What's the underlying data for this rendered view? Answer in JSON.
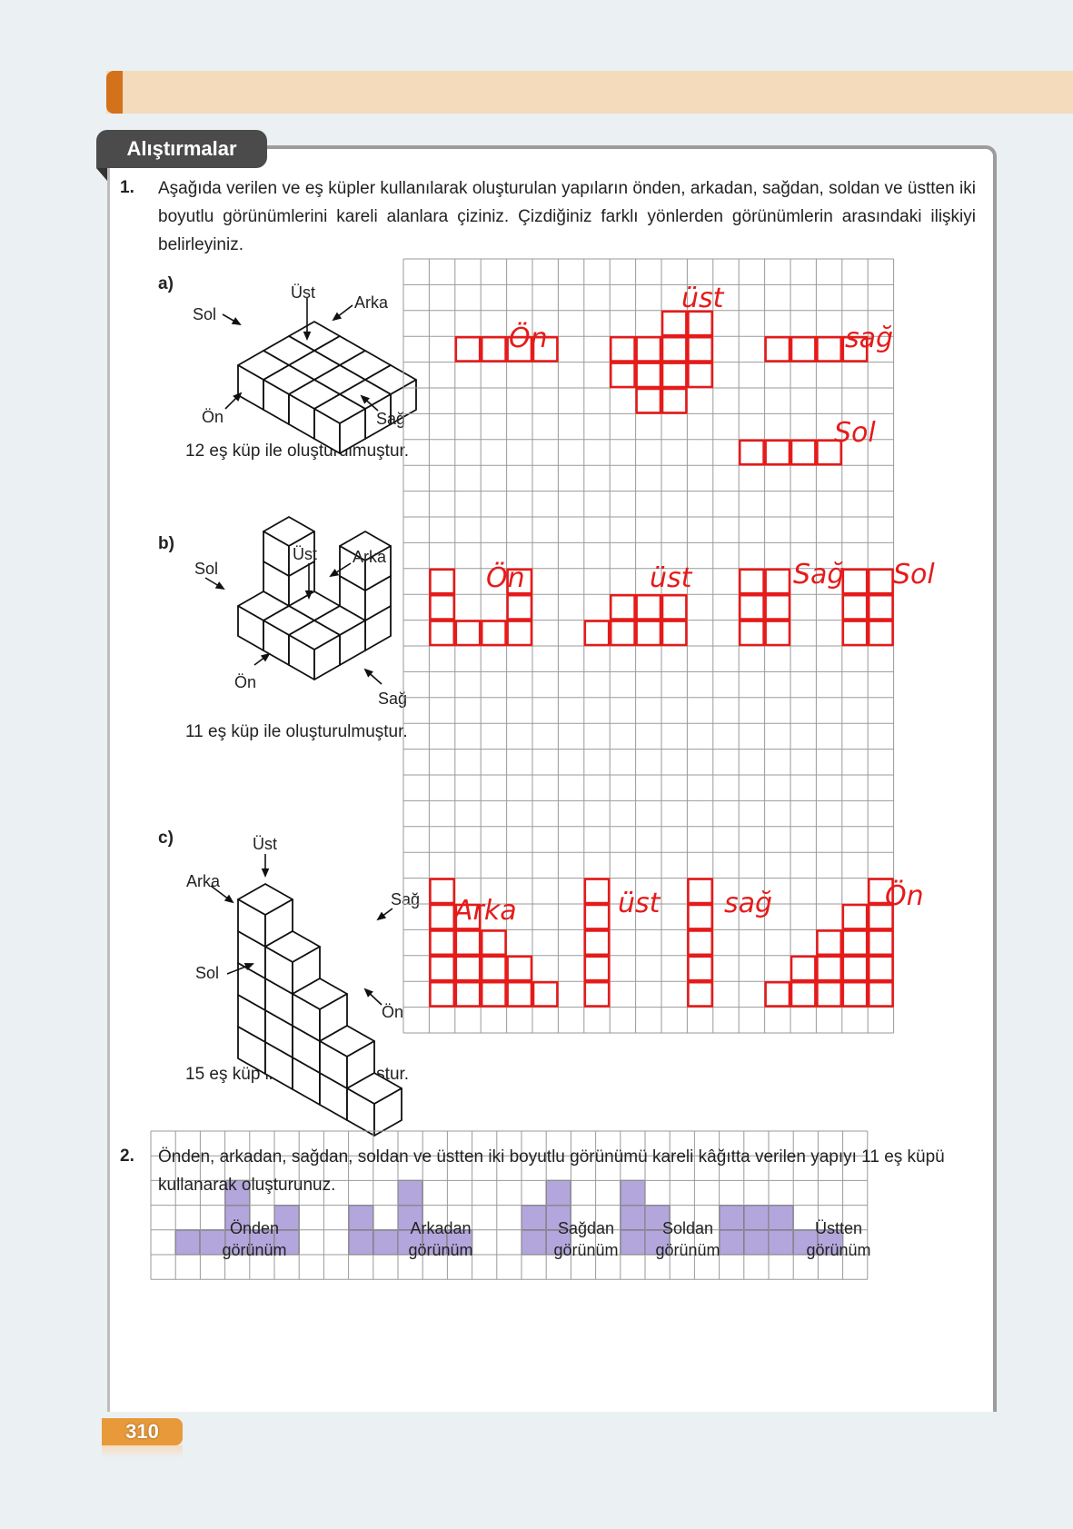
{
  "section_tab": "Alıştırmalar",
  "page_number": "310",
  "colors": {
    "accent": "#d4711b",
    "band": "#f4dbbb",
    "ink": "#e51b1b",
    "fill": "#b3a6dc"
  },
  "q1": {
    "number": "1.",
    "text": "Aşağıda verilen ve eş küpler kullanılarak oluşturulan yapıların önden, arkadan, sağdan, soldan ve üstten iki boyutlu görünümlerini kareli alanlara çiziniz. Çizdiğiniz farklı yönlerden görünümlerin arasındaki ilişkiyi belirleyiniz.",
    "parts": [
      {
        "label": "a)",
        "caption": "12 eş küp ile oluşturulmuştur.",
        "arrows": {
          "ust": "Üst",
          "sol": "Sol",
          "arka": "Arka",
          "on": "Ön",
          "sag": "Sağ"
        }
      },
      {
        "label": "b)",
        "caption": "11 eş küp ile oluşturulmuştur.",
        "arrows": {
          "ust": "Üst",
          "sol": "Sol",
          "arka": "Arka",
          "on": "Ön",
          "sag": "Sağ"
        }
      },
      {
        "label": "c)",
        "caption": "15 eş küp ile oluşturulmuştur.",
        "arrows": {
          "ust": "Üst",
          "sol": "Sol",
          "arka": "Arka",
          "on": "Ön",
          "sag": "Sağ"
        }
      }
    ],
    "handwriting": {
      "a": [
        "Ön",
        "üst",
        "sağ",
        "Sol"
      ],
      "b": [
        "Ön",
        "üst",
        "Sağ",
        "Sol"
      ],
      "c": [
        "Arka",
        "üst",
        "sağ",
        "Ön"
      ]
    }
  },
  "q2": {
    "number": "2.",
    "text": "Önden, arkadan, sağdan, soldan ve üstten iki boyutlu görünümü kareli kâğıtta verilen yapıyı 11 eş küpü kullanarak oluşturunuz.",
    "views": [
      {
        "title": "Önden",
        "subtitle": "görünüm"
      },
      {
        "title": "Arkadan",
        "subtitle": "görünüm"
      },
      {
        "title": "Sağdan",
        "subtitle": "görünüm"
      },
      {
        "title": "Soldan",
        "subtitle": "görünüm"
      },
      {
        "title": "Üstten",
        "subtitle": "görünüm"
      }
    ]
  }
}
